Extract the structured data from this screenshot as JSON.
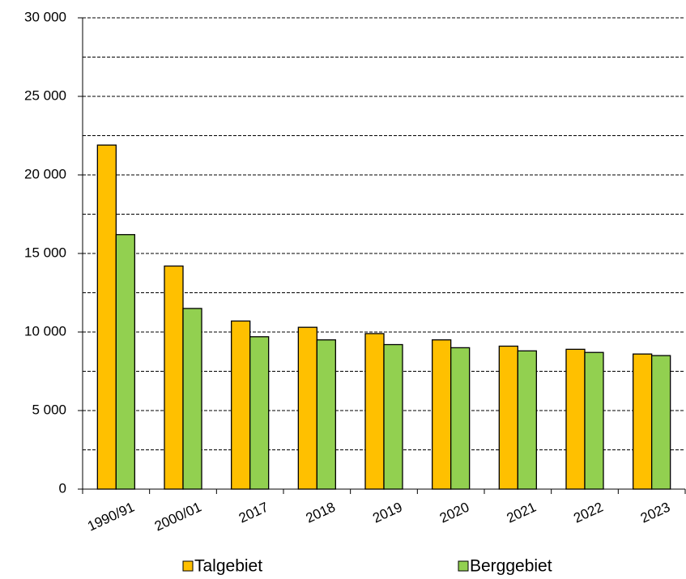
{
  "chart_data": {
    "type": "bar",
    "categories": [
      "1990/91",
      "2000/01",
      "2017",
      "2018",
      "2019",
      "2020",
      "2021",
      "2022",
      "2023"
    ],
    "series": [
      {
        "name": "Talgebiet",
        "color": "#ffc000",
        "values": [
          21900,
          14200,
          10700,
          10300,
          9900,
          9500,
          9100,
          8900,
          8600
        ]
      },
      {
        "name": "Berggebiet",
        "color": "#92d050",
        "values": [
          16200,
          11500,
          9700,
          9500,
          9200,
          9000,
          8800,
          8700,
          8500
        ]
      }
    ],
    "ylim": [
      0,
      30000
    ],
    "yticks": [
      0,
      {
        "value": 5000,
        "label": "5 000"
      },
      {
        "value": 10000,
        "label": "10 000"
      },
      {
        "value": 15000,
        "label": "15 000"
      },
      {
        "value": 20000,
        "label": "20 000"
      },
      {
        "value": 25000,
        "label": "25 000"
      },
      {
        "value": 30000,
        "label": "30 000"
      }
    ],
    "minor_yticks": [
      2500,
      7500,
      12500,
      17500,
      22500,
      27500
    ],
    "grid": true,
    "legend": "bottom"
  }
}
